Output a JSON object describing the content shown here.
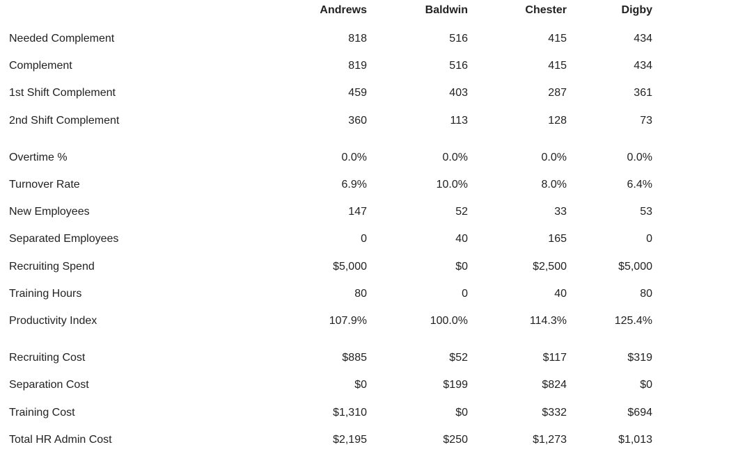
{
  "table": {
    "columns": [
      "Andrews",
      "Baldwin",
      "Chester",
      "Digby"
    ],
    "groups": [
      {
        "rows": [
          [
            "Needed Complement",
            "818",
            "516",
            "415",
            "434"
          ],
          [
            "Complement",
            "819",
            "516",
            "415",
            "434"
          ],
          [
            "1st Shift Complement",
            "459",
            "403",
            "287",
            "361"
          ],
          [
            "2nd Shift Complement",
            "360",
            "113",
            "128",
            "73"
          ]
        ]
      },
      {
        "rows": [
          [
            "Overtime %",
            "0.0%",
            "0.0%",
            "0.0%",
            "0.0%"
          ],
          [
            "Turnover Rate",
            "6.9%",
            "10.0%",
            "8.0%",
            "6.4%"
          ],
          [
            "New Employees",
            "147",
            "52",
            "33",
            "53"
          ],
          [
            "Separated Employees",
            "0",
            "40",
            "165",
            "0"
          ],
          [
            "Recruiting Spend",
            "$5,000",
            "$0",
            "$2,500",
            "$5,000"
          ],
          [
            "Training Hours",
            "80",
            "0",
            "40",
            "80"
          ],
          [
            "Productivity Index",
            "107.9%",
            "100.0%",
            "114.3%",
            "125.4%"
          ]
        ]
      },
      {
        "rows": [
          [
            "Recruiting Cost",
            "$885",
            "$52",
            "$117",
            "$319"
          ],
          [
            "Separation Cost",
            "$0",
            "$199",
            "$824",
            "$0"
          ],
          [
            "Training Cost",
            "$1,310",
            "$0",
            "$332",
            "$694"
          ],
          [
            "Total HR Admin Cost",
            "$2,195",
            "$250",
            "$1,273",
            "$1,013"
          ]
        ]
      }
    ]
  }
}
